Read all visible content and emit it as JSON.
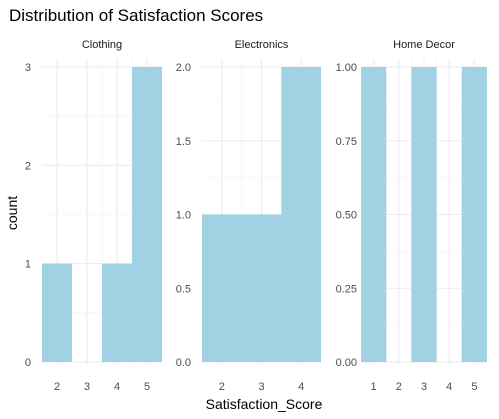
{
  "chart_data": {
    "type": "bar",
    "title": "Distribution of Satisfaction Scores",
    "xlabel": "Satisfaction_Score",
    "ylabel": "count",
    "bar_color": "#a1d2e3",
    "grid": true,
    "facets": [
      {
        "name": "Clothing",
        "xlim": [
          1.5,
          5.5
        ],
        "x_ticks": [
          "2",
          "3",
          "4",
          "5"
        ],
        "ylim": [
          0,
          3
        ],
        "y_ticks": [
          "0",
          "1",
          "2",
          "3"
        ],
        "bins": [
          {
            "xmin": 1.5,
            "xmax": 2.5,
            "count": 1
          },
          {
            "xmin": 2.5,
            "xmax": 3.5,
            "count": 0
          },
          {
            "xmin": 3.5,
            "xmax": 4.5,
            "count": 1
          },
          {
            "xmin": 4.5,
            "xmax": 5.5,
            "count": 3
          }
        ]
      },
      {
        "name": "Electronics",
        "xlim": [
          1.5,
          4.5
        ],
        "x_ticks": [
          "2",
          "3",
          "4"
        ],
        "ylim": [
          0,
          2
        ],
        "y_ticks": [
          "0.0",
          "0.5",
          "1.0",
          "1.5",
          "2.0"
        ],
        "bins": [
          {
            "xmin": 1.5,
            "xmax": 2.5,
            "count": 1
          },
          {
            "xmin": 2.5,
            "xmax": 3.5,
            "count": 1
          },
          {
            "xmin": 3.5,
            "xmax": 4.5,
            "count": 2
          }
        ]
      },
      {
        "name": "Home Decor",
        "xlim": [
          0.5,
          5.5
        ],
        "x_ticks": [
          "1",
          "2",
          "3",
          "4",
          "5"
        ],
        "ylim": [
          0,
          1
        ],
        "y_ticks": [
          "0.00",
          "0.25",
          "0.50",
          "0.75",
          "1.00"
        ],
        "bins": [
          {
            "xmin": 0.5,
            "xmax": 1.5,
            "count": 1
          },
          {
            "xmin": 1.5,
            "xmax": 2.5,
            "count": 0
          },
          {
            "xmin": 2.5,
            "xmax": 3.5,
            "count": 1
          },
          {
            "xmin": 3.5,
            "xmax": 4.5,
            "count": 0
          },
          {
            "xmin": 4.5,
            "xmax": 5.5,
            "count": 1
          }
        ]
      }
    ]
  }
}
